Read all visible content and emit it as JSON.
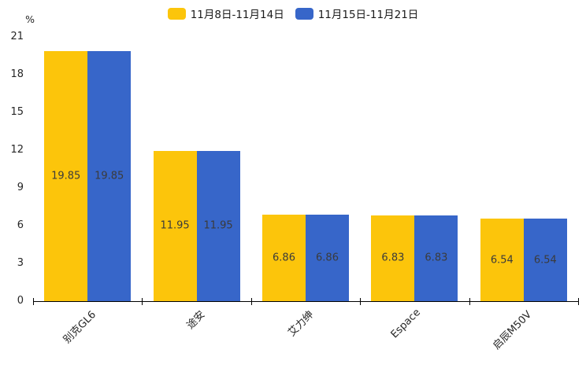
{
  "chart_data": {
    "type": "bar",
    "title": "",
    "unit_label": "%",
    "categories": [
      "别克GL6",
      "途安",
      "艾力绅",
      "Espace",
      "启辰M50V"
    ],
    "series": [
      {
        "name": "11月8日-11月14日",
        "color": "#FCC50B",
        "values": [
          19.85,
          11.95,
          6.86,
          6.83,
          6.54
        ]
      },
      {
        "name": "11月15日-11月21日",
        "color": "#3766C9",
        "values": [
          19.85,
          11.95,
          6.86,
          6.83,
          6.54
        ]
      }
    ],
    "ylim": [
      0,
      21
    ],
    "yticks": [
      0,
      3,
      6,
      9,
      12,
      15,
      18,
      21
    ],
    "grid": false,
    "legend_position": "top-center",
    "value_labels_position": "inside-center",
    "value_label_decimals": 2
  }
}
